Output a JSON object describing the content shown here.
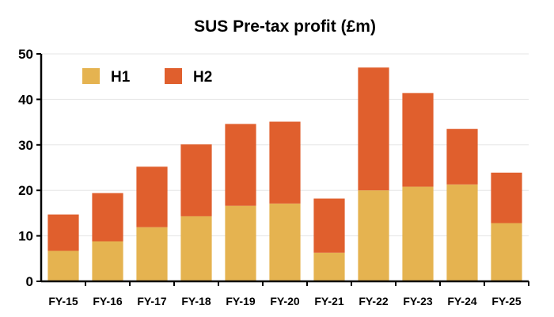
{
  "chart_data": {
    "type": "bar",
    "stacked": true,
    "title": "SUS Pre-tax profit (£m)",
    "categories": [
      "FY-15",
      "FY-16",
      "FY-17",
      "FY-18",
      "FY-19",
      "FY-20",
      "FY-21",
      "FY-22",
      "FY-23",
      "FY-24",
      "FY-25"
    ],
    "series": [
      {
        "name": "H1",
        "color": "#e5b350",
        "values": [
          6.7,
          8.8,
          11.9,
          14.3,
          16.6,
          17.1,
          6.3,
          20.0,
          20.8,
          21.3,
          12.8
        ]
      },
      {
        "name": "H2",
        "color": "#e05f2d",
        "values": [
          8.0,
          10.6,
          13.3,
          15.8,
          18.0,
          18.0,
          11.9,
          27.0,
          20.6,
          12.2,
          11.1
        ]
      }
    ],
    "ylim": [
      0,
      50
    ],
    "yticks": [
      "0",
      "10",
      "20",
      "30",
      "40",
      "50"
    ],
    "grid": true,
    "legend": "top-left"
  }
}
